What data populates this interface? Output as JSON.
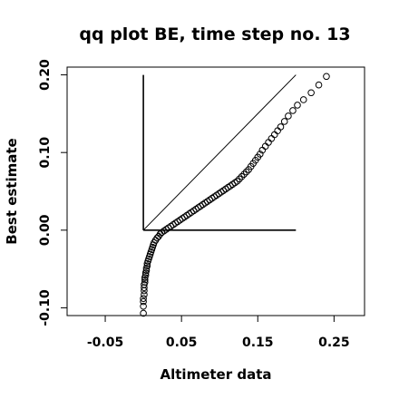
{
  "chart_data": {
    "type": "scatter",
    "title": "qq plot BE, time step no. 13",
    "xlabel": "Altimeter data",
    "ylabel": "Best estimate",
    "xlim": [
      -0.1,
      0.29
    ],
    "ylim": [
      -0.11,
      0.21
    ],
    "xticks": [
      -0.05,
      0.05,
      0.15,
      0.25
    ],
    "xtick_labels": [
      "-0.05",
      "0.05",
      "0.15",
      "0.25"
    ],
    "yticks": [
      -0.1,
      0.0,
      0.1,
      0.2
    ],
    "ytick_labels": [
      "-0.10",
      "0.00",
      "0.10",
      "0.20"
    ],
    "grid": false,
    "marker": "open-circle",
    "reference_lines": [
      {
        "type": "vertical",
        "x": 0.0,
        "y_from": 0.0,
        "y_to": 0.2
      },
      {
        "type": "horizontal",
        "y": 0.0,
        "x_from": 0.0,
        "x_to": 0.2
      },
      {
        "type": "identity",
        "x_from": 0.0,
        "x_to": 0.2
      }
    ],
    "points": [
      [
        0.0,
        -0.107
      ],
      [
        0.0,
        -0.098
      ],
      [
        0.0,
        -0.092
      ],
      [
        0.0,
        -0.088
      ],
      [
        0.001,
        -0.083
      ],
      [
        0.001,
        -0.078
      ],
      [
        0.001,
        -0.074
      ],
      [
        0.001,
        -0.07
      ],
      [
        0.002,
        -0.067
      ],
      [
        0.002,
        -0.064
      ],
      [
        0.002,
        -0.061
      ],
      [
        0.003,
        -0.058
      ],
      [
        0.003,
        -0.055
      ],
      [
        0.004,
        -0.052
      ],
      [
        0.004,
        -0.049
      ],
      [
        0.005,
        -0.046
      ],
      [
        0.005,
        -0.043
      ],
      [
        0.006,
        -0.04
      ],
      [
        0.007,
        -0.037
      ],
      [
        0.008,
        -0.034
      ],
      [
        0.009,
        -0.031
      ],
      [
        0.01,
        -0.028
      ],
      [
        0.011,
        -0.025
      ],
      [
        0.012,
        -0.022
      ],
      [
        0.013,
        -0.019
      ],
      [
        0.014,
        -0.016
      ],
      [
        0.016,
        -0.013
      ],
      [
        0.018,
        -0.01
      ],
      [
        0.02,
        -0.008
      ],
      [
        0.022,
        -0.005
      ],
      [
        0.024,
        -0.003
      ],
      [
        0.027,
        -0.001
      ],
      [
        0.03,
        0.001
      ],
      [
        0.033,
        0.003
      ],
      [
        0.036,
        0.005
      ],
      [
        0.039,
        0.007
      ],
      [
        0.042,
        0.009
      ],
      [
        0.045,
        0.011
      ],
      [
        0.048,
        0.013
      ],
      [
        0.051,
        0.015
      ],
      [
        0.054,
        0.017
      ],
      [
        0.057,
        0.019
      ],
      [
        0.06,
        0.021
      ],
      [
        0.063,
        0.023
      ],
      [
        0.066,
        0.025
      ],
      [
        0.069,
        0.027
      ],
      [
        0.072,
        0.029
      ],
      [
        0.075,
        0.031
      ],
      [
        0.078,
        0.033
      ],
      [
        0.081,
        0.035
      ],
      [
        0.084,
        0.037
      ],
      [
        0.087,
        0.039
      ],
      [
        0.09,
        0.041
      ],
      [
        0.093,
        0.043
      ],
      [
        0.096,
        0.045
      ],
      [
        0.099,
        0.047
      ],
      [
        0.102,
        0.049
      ],
      [
        0.105,
        0.051
      ],
      [
        0.108,
        0.053
      ],
      [
        0.111,
        0.055
      ],
      [
        0.114,
        0.057
      ],
      [
        0.117,
        0.059
      ],
      [
        0.12,
        0.061
      ],
      [
        0.123,
        0.063
      ],
      [
        0.126,
        0.066
      ],
      [
        0.129,
        0.069
      ],
      [
        0.132,
        0.072
      ],
      [
        0.135,
        0.075
      ],
      [
        0.138,
        0.078
      ],
      [
        0.141,
        0.082
      ],
      [
        0.144,
        0.086
      ],
      [
        0.147,
        0.09
      ],
      [
        0.15,
        0.094
      ],
      [
        0.153,
        0.098
      ],
      [
        0.156,
        0.103
      ],
      [
        0.16,
        0.108
      ],
      [
        0.164,
        0.113
      ],
      [
        0.168,
        0.118
      ],
      [
        0.172,
        0.123
      ],
      [
        0.176,
        0.128
      ],
      [
        0.18,
        0.133
      ],
      [
        0.185,
        0.14
      ],
      [
        0.19,
        0.147
      ],
      [
        0.196,
        0.154
      ],
      [
        0.202,
        0.161
      ],
      [
        0.21,
        0.168
      ],
      [
        0.22,
        0.177
      ],
      [
        0.23,
        0.187
      ],
      [
        0.24,
        0.198
      ]
    ]
  }
}
